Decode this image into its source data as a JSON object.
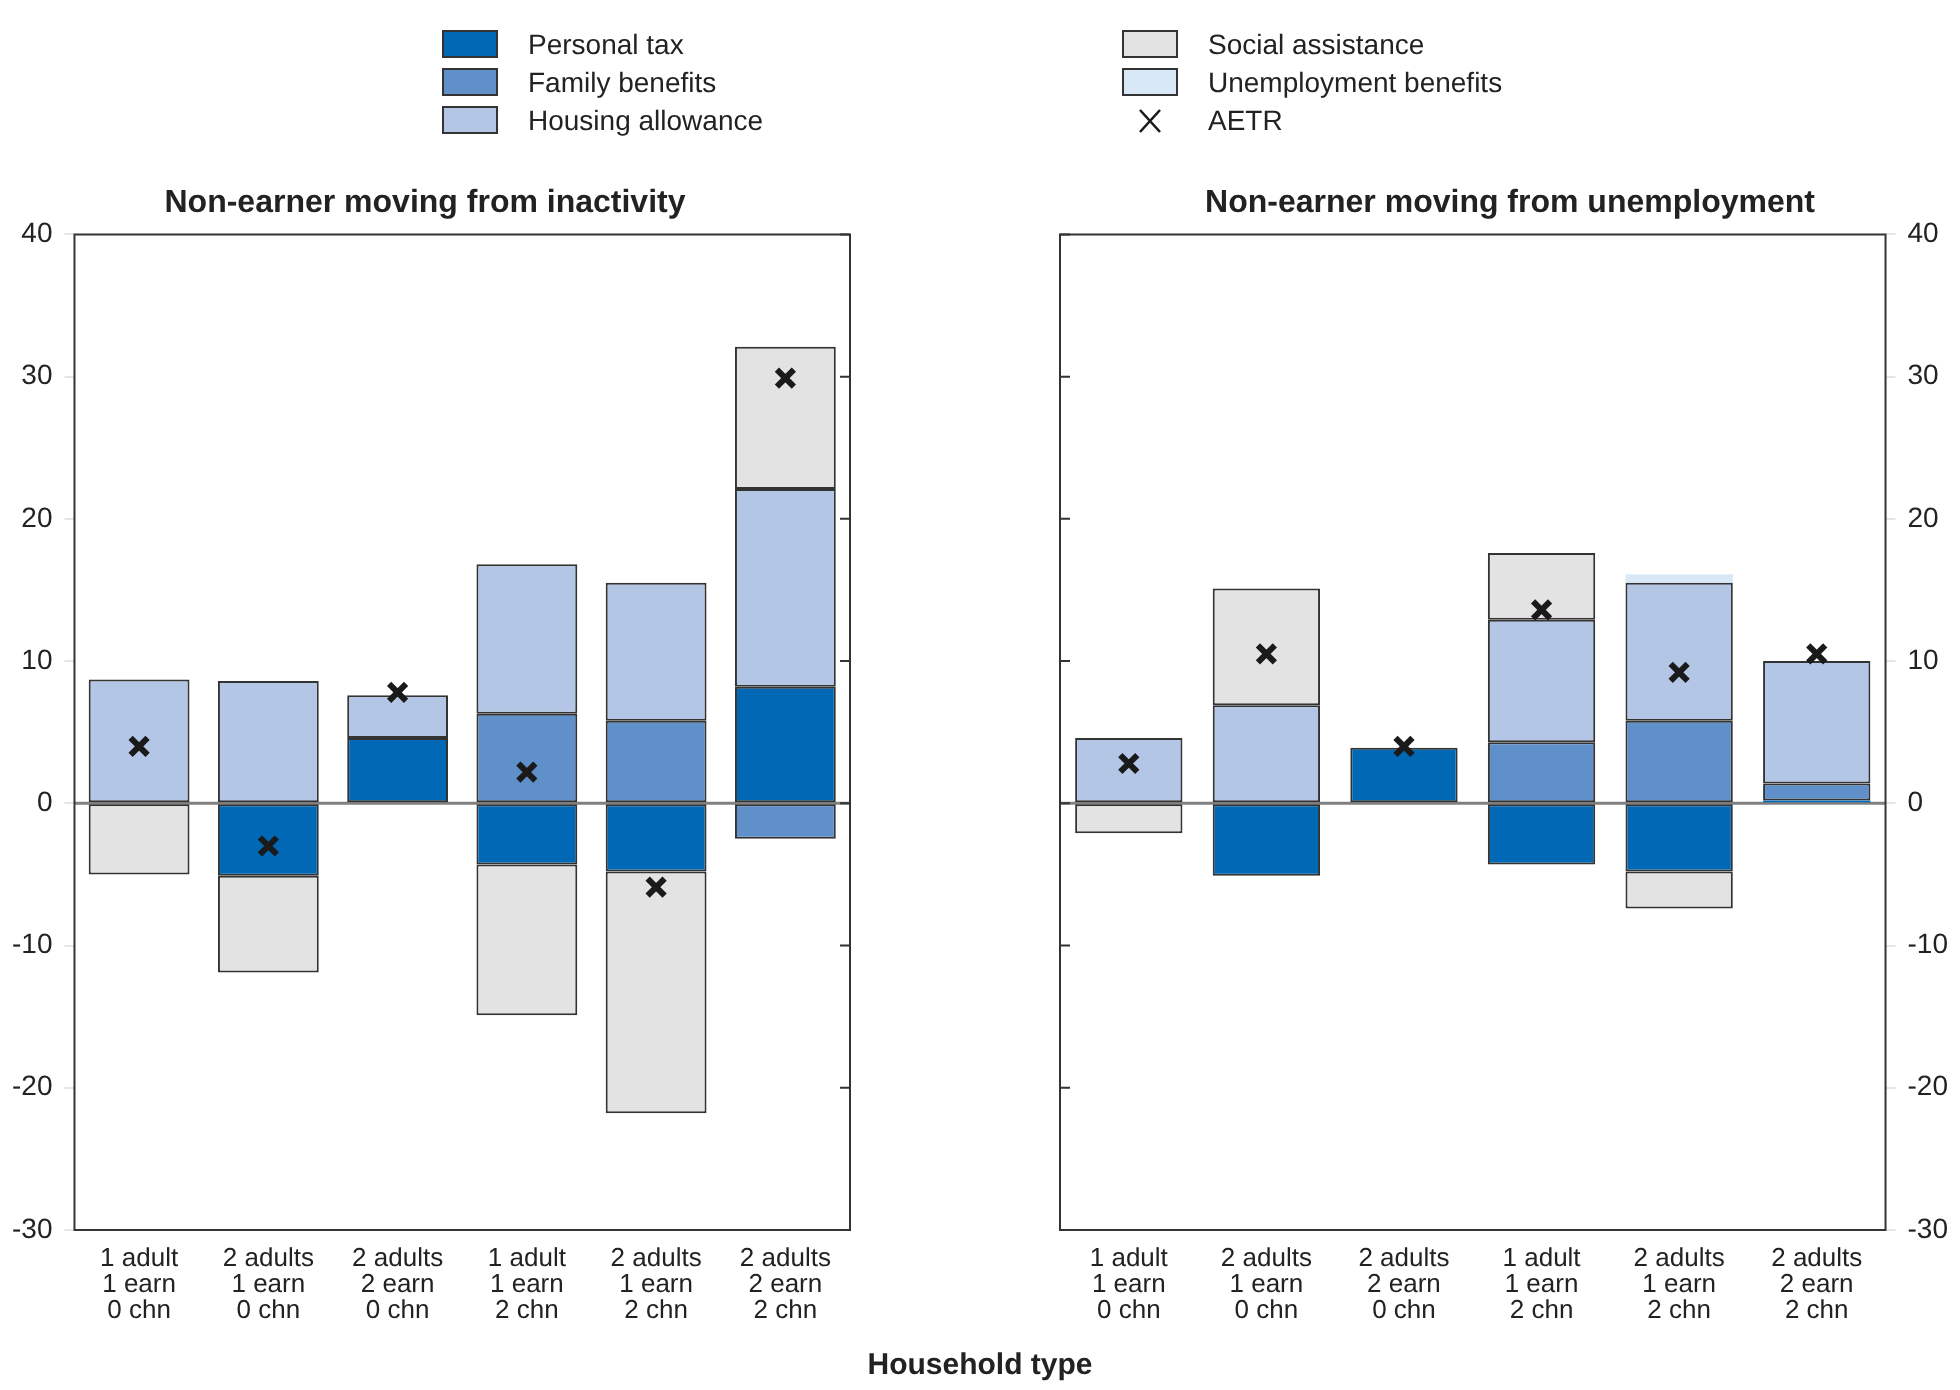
{
  "chart_data": [
    {
      "type": "bar",
      "title": "Non-earner moving from inactivity",
      "xlabel": "Household type",
      "stacked": true,
      "legend": "top",
      "grid": false,
      "categories": [
        "1 adult\n1 earn\n0 chn",
        "2 adults\n1 earn\n0 chn",
        "2 adults\n2 earn\n0 chn",
        "1 adult\n1 earn\n2 chn",
        "2 adults\n1 earn\n2 chn",
        "2 adults\n2 earn\n2 chn"
      ],
      "ylim": [
        -30,
        40
      ],
      "yticks": [
        -30,
        -20,
        -10,
        0,
        10,
        20,
        30,
        40
      ],
      "ref_lines": [
        {
          "axis": "y",
          "value": 0,
          "color": "#808080"
        }
      ],
      "series": [
        {
          "name": "Personal tax",
          "color": "#0068b4",
          "values": [
            null,
            -5.1,
            4.6,
            -4.3,
            -4.8,
            8.2
          ]
        },
        {
          "name": "Family benefits",
          "color": "#5f90c9",
          "values": [
            null,
            null,
            null,
            6.3,
            5.8,
            -2.5
          ]
        },
        {
          "name": "Housing allowance",
          "color": "#b3c6e6",
          "values": [
            8.7,
            8.6,
            3.0,
            10.5,
            9.7,
            13.9
          ]
        },
        {
          "name": "Social assistance",
          "color": "#e3e3e3",
          "values": [
            -5.0,
            -6.8,
            null,
            -10.6,
            -17.0,
            10.0
          ]
        },
        {
          "name": "AETR",
          "type": "scatter",
          "marker": "cross",
          "color": "#1a1a1a",
          "x": [
            "1 adult\n1 earn\n0 chn",
            "2 adults\n1 earn\n0 chn",
            "2 adults\n2 earn\n0 chn",
            "1 adult\n1 earn\n2 chn",
            "2 adults\n1 earn\n2 chn",
            "2 adults\n2 earn\n2 chn"
          ],
          "values": [
            4.0,
            -3.0,
            7.8,
            2.2,
            -5.9,
            29.9
          ]
        }
      ]
    },
    {
      "type": "bar",
      "title": "Non-earner moving from unemployment",
      "stacked": true,
      "legend": "top",
      "grid": false,
      "categories": [
        "1 adult\n1 earn\n0 chn",
        "2 adults\n1 earn\n0 chn",
        "2 adults\n2 earn\n0 chn",
        "1 adult\n1 earn\n2 chn",
        "2 adults\n1 earn\n2 chn",
        "2 adults\n2 earn\n2 chn"
      ],
      "ylim": [
        -30,
        40
      ],
      "yticks": [
        -30,
        -20,
        -10,
        0,
        10,
        20,
        30,
        40
      ],
      "ref_lines": [
        {
          "axis": "y",
          "value": 0,
          "color": "#808080"
        }
      ],
      "series": [
        {
          "name": "Personal tax",
          "color": "#0068b4",
          "values": [
            null,
            -5.1,
            3.9,
            -4.3,
            -4.8,
            0.2
          ]
        },
        {
          "name": "Family benefits",
          "color": "#5f90c9",
          "values": [
            null,
            null,
            null,
            4.3,
            5.8,
            1.2
          ]
        },
        {
          "name": "Housing allowance",
          "color": "#b3c6e6",
          "values": [
            4.6,
            6.9,
            null,
            8.6,
            9.7,
            8.6
          ]
        },
        {
          "name": "Social assistance",
          "color": "#e3e3e3",
          "values": [
            -2.1,
            8.2,
            null,
            4.7,
            -2.6,
            null
          ]
        },
        {
          "name": "Unemployment benefits",
          "color": "#d8e8f6",
          "values": [
            null,
            null,
            null,
            null,
            0.6,
            null
          ]
        },
        {
          "name": "AETR",
          "type": "scatter",
          "marker": "cross",
          "color": "#1a1a1a",
          "x": [
            "1 adult\n1 earn\n0 chn",
            "2 adults\n1 earn\n0 chn",
            "2 adults\n2 earn\n0 chn",
            "1 adult\n1 earn\n2 chn",
            "2 adults\n1 earn\n2 chn",
            "2 adults\n2 earn\n2 chn"
          ],
          "values": [
            2.8,
            10.5,
            4.0,
            13.6,
            9.2,
            10.5
          ]
        }
      ]
    }
  ]
}
